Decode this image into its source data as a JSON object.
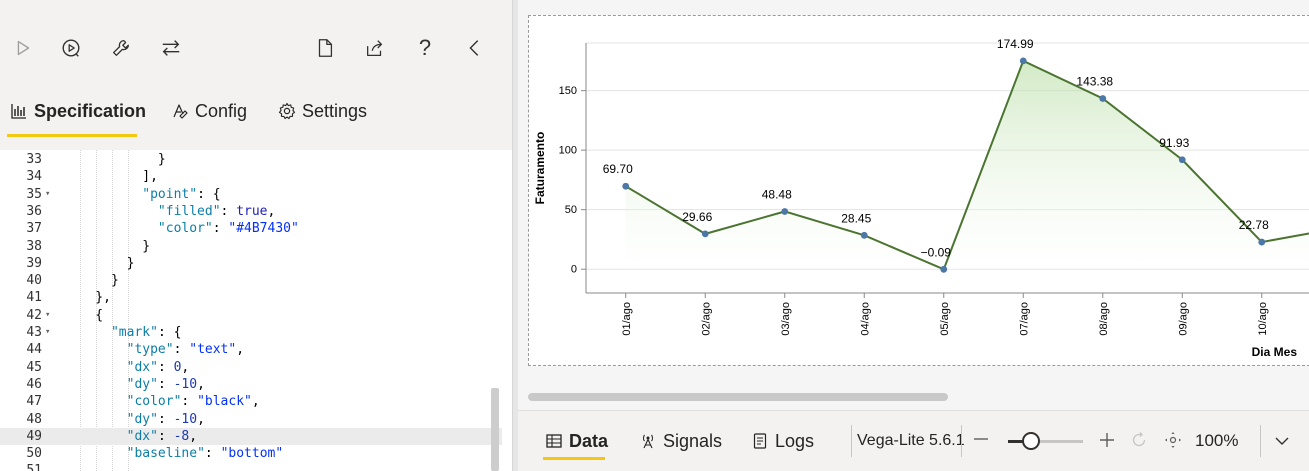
{
  "toolbar": {
    "icons": [
      "run-icon",
      "auto-run-icon",
      "wrench-icon",
      "swap-icon",
      "new-file-icon",
      "share-icon",
      "help-icon",
      "collapse-pane-icon"
    ],
    "help_glyph": "?"
  },
  "editor_tabs": [
    {
      "label": "Specification",
      "icon": "bar-chart-icon",
      "active": true
    },
    {
      "label": "Config",
      "icon": "config-icon",
      "active": false
    },
    {
      "label": "Settings",
      "icon": "gear-icon",
      "active": false
    }
  ],
  "editor": {
    "active_line": 49,
    "lines": [
      {
        "n": "33",
        "fold": false,
        "text": "            }"
      },
      {
        "n": "34",
        "fold": false,
        "text": "          ],"
      },
      {
        "n": "35",
        "fold": true,
        "text": "          \"point\": {"
      },
      {
        "n": "36",
        "fold": false,
        "text": "            \"filled\": true,"
      },
      {
        "n": "37",
        "fold": false,
        "text": "            \"color\": \"#4B7430\""
      },
      {
        "n": "38",
        "fold": false,
        "text": "          }"
      },
      {
        "n": "39",
        "fold": false,
        "text": "        }"
      },
      {
        "n": "40",
        "fold": false,
        "text": "      }"
      },
      {
        "n": "41",
        "fold": false,
        "text": "    },"
      },
      {
        "n": "42",
        "fold": true,
        "text": "    {"
      },
      {
        "n": "43",
        "fold": true,
        "text": "      \"mark\": {"
      },
      {
        "n": "44",
        "fold": false,
        "text": "        \"type\": \"text\","
      },
      {
        "n": "45",
        "fold": false,
        "text": "        \"dx\": 0,"
      },
      {
        "n": "46",
        "fold": false,
        "text": "        \"dy\": -10,"
      },
      {
        "n": "47",
        "fold": false,
        "text": "        \"color\": \"black\","
      },
      {
        "n": "48",
        "fold": false,
        "text": "        \"dy\": -10,"
      },
      {
        "n": "49",
        "fold": false,
        "text": "        \"dx\": -8,"
      },
      {
        "n": "50",
        "fold": false,
        "text": "        \"baseline\": \"bottom\""
      },
      {
        "n": "51",
        "fold": false,
        "text": ""
      }
    ]
  },
  "chart_data": {
    "type": "line",
    "title": "",
    "xlabel": "Dia Mes",
    "ylabel": "Faturamento",
    "categories": [
      "01/ago",
      "02/ago",
      "03/ago",
      "04/ago",
      "05/ago",
      "07/ago",
      "08/ago",
      "09/ago",
      "10/ago"
    ],
    "values": [
      69.7,
      29.66,
      48.48,
      28.45,
      -0.09,
      174.99,
      143.38,
      91.93,
      22.78
    ],
    "labels": [
      "69.70",
      "29.66",
      "48.48",
      "28.45",
      "−0.09",
      "174.99",
      "143.38",
      "91.93",
      "22.78"
    ],
    "y_ticks": [
      0,
      50,
      100,
      150
    ],
    "ylim": [
      -20,
      190
    ],
    "area_fill": true,
    "colors": {
      "line": "#4b7430",
      "point": "#4c78a8",
      "area_top": "#b5dca0",
      "area_bottom": "#ffffff"
    },
    "grid": true,
    "truncated_right": true
  },
  "bottom_bar": {
    "tabs": [
      {
        "label": "Data",
        "icon": "table-icon",
        "active": true
      },
      {
        "label": "Signals",
        "icon": "signal-icon",
        "active": false
      },
      {
        "label": "Logs",
        "icon": "logs-icon",
        "active": false
      }
    ],
    "version": "Vega-Lite 5.6.1",
    "zoom_level": "100%",
    "zoom_fraction": 0.25
  }
}
